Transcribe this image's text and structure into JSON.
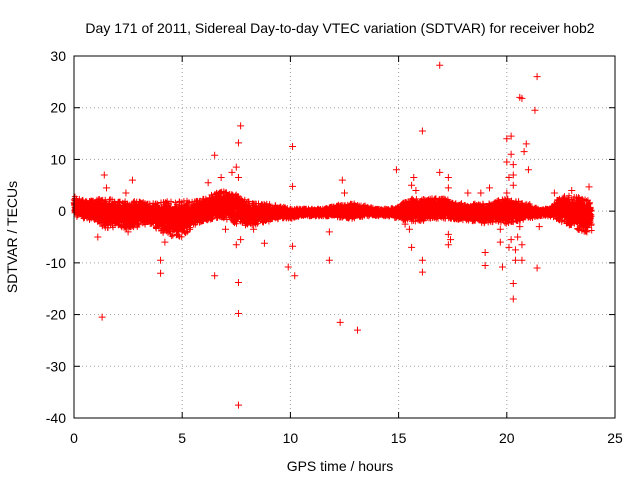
{
  "chart_data": {
    "type": "scatter",
    "title": "Day 171 of 2011, Sidereal Day-to-day VTEC variation (SDTVAR) for receiver hob2",
    "xlabel": "GPS time / hours",
    "ylabel": "SDTVAR / TECUs",
    "xlim": [
      0,
      25
    ],
    "ylim": [
      -40,
      30
    ],
    "xticks": [
      0,
      5,
      10,
      15,
      20,
      25
    ],
    "yticks": [
      -40,
      -30,
      -20,
      -10,
      0,
      10,
      20,
      30
    ],
    "grid": true,
    "marker": "+",
    "color": "#ff0000",
    "band": {
      "x": [
        0.0,
        0.5,
        1.0,
        1.5,
        2.0,
        2.5,
        3.0,
        3.5,
        4.0,
        4.5,
        5.0,
        5.5,
        6.0,
        6.5,
        7.0,
        7.5,
        8.0,
        8.5,
        9.0,
        9.5,
        10.0,
        10.5,
        11.0,
        11.5,
        12.0,
        12.5,
        13.0,
        13.5,
        14.0,
        14.5,
        15.0,
        15.5,
        16.0,
        16.5,
        17.0,
        17.5,
        18.0,
        18.5,
        19.0,
        19.5,
        20.0,
        20.5,
        21.0,
        21.5,
        22.0,
        22.5,
        23.0,
        23.5,
        23.9
      ],
      "upper": [
        3.0,
        2.0,
        2.5,
        2.5,
        2.0,
        2.0,
        2.0,
        1.5,
        2.0,
        2.0,
        2.0,
        2.0,
        2.5,
        3.5,
        4.0,
        3.5,
        2.0,
        1.5,
        1.5,
        1.0,
        0.5,
        0.5,
        0.5,
        0.5,
        1.0,
        1.5,
        1.5,
        1.0,
        0.5,
        0.5,
        1.0,
        2.5,
        2.5,
        2.5,
        2.5,
        2.0,
        1.5,
        1.5,
        1.5,
        2.0,
        2.5,
        2.0,
        1.5,
        0.5,
        0.5,
        3.0,
        3.0,
        2.5,
        2.0
      ],
      "lower": [
        -1.0,
        -1.5,
        -2.0,
        -3.5,
        -3.0,
        -3.5,
        -3.0,
        -2.5,
        -4.0,
        -5.0,
        -5.0,
        -3.0,
        -2.0,
        -1.5,
        -1.5,
        -2.5,
        -3.0,
        -2.5,
        -2.0,
        -1.5,
        -1.5,
        -1.0,
        -1.0,
        -1.0,
        -1.0,
        -1.5,
        -1.5,
        -1.0,
        -1.0,
        -1.0,
        -1.5,
        -2.0,
        -2.0,
        -1.5,
        -1.5,
        -1.5,
        -2.0,
        -2.0,
        -2.5,
        -2.0,
        -2.5,
        -2.0,
        -1.5,
        -1.0,
        -1.0,
        -2.0,
        -3.0,
        -4.0,
        -4.0
      ]
    },
    "outliers": [
      {
        "x": 1.4,
        "y": 7.0
      },
      {
        "x": 1.3,
        "y": -20.5
      },
      {
        "x": 1.1,
        "y": -5.0
      },
      {
        "x": 1.5,
        "y": 4.5
      },
      {
        "x": 2.7,
        "y": 6.0
      },
      {
        "x": 2.4,
        "y": 3.5
      },
      {
        "x": 2.5,
        "y": -4.0
      },
      {
        "x": 4.0,
        "y": -9.5
      },
      {
        "x": 4.0,
        "y": -12.0
      },
      {
        "x": 4.2,
        "y": -6.0
      },
      {
        "x": 6.5,
        "y": 10.8
      },
      {
        "x": 6.5,
        "y": -12.5
      },
      {
        "x": 6.2,
        "y": 5.5
      },
      {
        "x": 6.8,
        "y": 6.5
      },
      {
        "x": 7.0,
        "y": -3.5
      },
      {
        "x": 7.3,
        "y": 7.5
      },
      {
        "x": 7.7,
        "y": 16.5
      },
      {
        "x": 7.6,
        "y": 13.2
      },
      {
        "x": 7.5,
        "y": 8.5
      },
      {
        "x": 7.6,
        "y": 6.5
      },
      {
        "x": 7.5,
        "y": -6.5
      },
      {
        "x": 7.7,
        "y": -5.5
      },
      {
        "x": 7.6,
        "y": -13.8
      },
      {
        "x": 7.6,
        "y": -19.8
      },
      {
        "x": 7.6,
        "y": -37.5
      },
      {
        "x": 8.3,
        "y": -3.5
      },
      {
        "x": 8.8,
        "y": -6.2
      },
      {
        "x": 10.1,
        "y": 12.5
      },
      {
        "x": 10.1,
        "y": 4.8
      },
      {
        "x": 10.1,
        "y": -6.8
      },
      {
        "x": 9.9,
        "y": -10.8
      },
      {
        "x": 10.2,
        "y": -12.5
      },
      {
        "x": 11.8,
        "y": -4.0
      },
      {
        "x": 11.8,
        "y": -9.5
      },
      {
        "x": 12.3,
        "y": -21.5
      },
      {
        "x": 12.4,
        "y": 6.0
      },
      {
        "x": 12.5,
        "y": 3.5
      },
      {
        "x": 13.1,
        "y": -23.0
      },
      {
        "x": 14.9,
        "y": 8.0
      },
      {
        "x": 15.7,
        "y": 6.5
      },
      {
        "x": 15.6,
        "y": 5.0
      },
      {
        "x": 15.5,
        "y": -3.5
      },
      {
        "x": 15.6,
        "y": -7.0
      },
      {
        "x": 15.3,
        "y": -2.5
      },
      {
        "x": 16.1,
        "y": 15.5
      },
      {
        "x": 16.1,
        "y": -9.5
      },
      {
        "x": 16.1,
        "y": -11.8
      },
      {
        "x": 15.8,
        "y": 4.0
      },
      {
        "x": 16.9,
        "y": 28.2
      },
      {
        "x": 16.9,
        "y": 7.5
      },
      {
        "x": 17.3,
        "y": 6.5
      },
      {
        "x": 17.3,
        "y": 4.5
      },
      {
        "x": 17.3,
        "y": -4.5
      },
      {
        "x": 17.4,
        "y": -5.5
      },
      {
        "x": 17.3,
        "y": -6.5
      },
      {
        "x": 18.2,
        "y": 3.5
      },
      {
        "x": 18.8,
        "y": 3.5
      },
      {
        "x": 19.0,
        "y": -8.0
      },
      {
        "x": 19.0,
        "y": -10.5
      },
      {
        "x": 19.2,
        "y": 4.5
      },
      {
        "x": 19.7,
        "y": -3.5
      },
      {
        "x": 19.7,
        "y": -6.0
      },
      {
        "x": 19.8,
        "y": -10.8
      },
      {
        "x": 20.0,
        "y": 14.0
      },
      {
        "x": 20.0,
        "y": 9.5
      },
      {
        "x": 20.1,
        "y": 6.5
      },
      {
        "x": 20.0,
        "y": 3.5
      },
      {
        "x": 20.2,
        "y": 14.5
      },
      {
        "x": 20.2,
        "y": 11.0
      },
      {
        "x": 20.3,
        "y": 9.0
      },
      {
        "x": 20.3,
        "y": 7.0
      },
      {
        "x": 20.3,
        "y": 5.0
      },
      {
        "x": 20.2,
        "y": -5.5
      },
      {
        "x": 20.4,
        "y": -7.5
      },
      {
        "x": 20.1,
        "y": -7.0
      },
      {
        "x": 20.4,
        "y": -9.5
      },
      {
        "x": 20.3,
        "y": -14.0
      },
      {
        "x": 20.3,
        "y": -17.0
      },
      {
        "x": 20.5,
        "y": -5.0
      },
      {
        "x": 20.6,
        "y": 22.0
      },
      {
        "x": 20.7,
        "y": 21.8
      },
      {
        "x": 20.8,
        "y": 11.5
      },
      {
        "x": 20.9,
        "y": 13.0
      },
      {
        "x": 20.7,
        "y": -6.5
      },
      {
        "x": 20.7,
        "y": -9.5
      },
      {
        "x": 20.6,
        "y": -3.0
      },
      {
        "x": 21.0,
        "y": 8.0
      },
      {
        "x": 21.4,
        "y": 26.0
      },
      {
        "x": 21.3,
        "y": 19.5
      },
      {
        "x": 21.4,
        "y": -11.0
      },
      {
        "x": 21.5,
        "y": -3.0
      },
      {
        "x": 22.2,
        "y": 3.5
      },
      {
        "x": 23.0,
        "y": 4.0
      },
      {
        "x": 23.3,
        "y": -3.5
      },
      {
        "x": 23.8,
        "y": 4.7
      },
      {
        "x": 23.7,
        "y": -4.0
      },
      {
        "x": 23.9,
        "y": -2.5
      }
    ]
  }
}
